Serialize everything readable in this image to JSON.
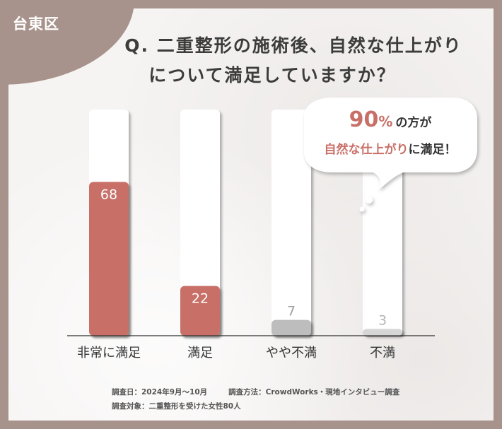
{
  "region": "台東区",
  "title_line1": "Q. 二重整形の施術後、自然な仕上がり",
  "title_line2": "について満足していますか？",
  "bubble": {
    "percent": "90",
    "percent_unit": "%",
    "line1_rest": "の方が",
    "line2_highlight": "自然な仕上がり",
    "line2_rest": "に満足！"
  },
  "chart_data": {
    "type": "bar",
    "categories": [
      "非常に満足",
      "満足",
      "やや不満",
      "不満"
    ],
    "values": [
      68,
      22,
      7,
      3
    ],
    "ylim": [
      0,
      100
    ],
    "colors": [
      "#c87068",
      "#c87068",
      "#bdbdbd",
      "#d6d6d6"
    ],
    "label_colors": [
      "#ffffff",
      "#ffffff",
      "#a0a0a0",
      "#b5b5b5"
    ],
    "grid": false
  },
  "footnote": {
    "survey_date": "調査日：2024年9月〜10月",
    "survey_method": "調査方法：CrowdWorks・現地インタビュー調査",
    "survey_target": "調査対象：二重整形を受けた女性80人"
  },
  "colors": {
    "frame": "#a8938c",
    "accent": "#c87068",
    "card": "#f6f4f3"
  }
}
